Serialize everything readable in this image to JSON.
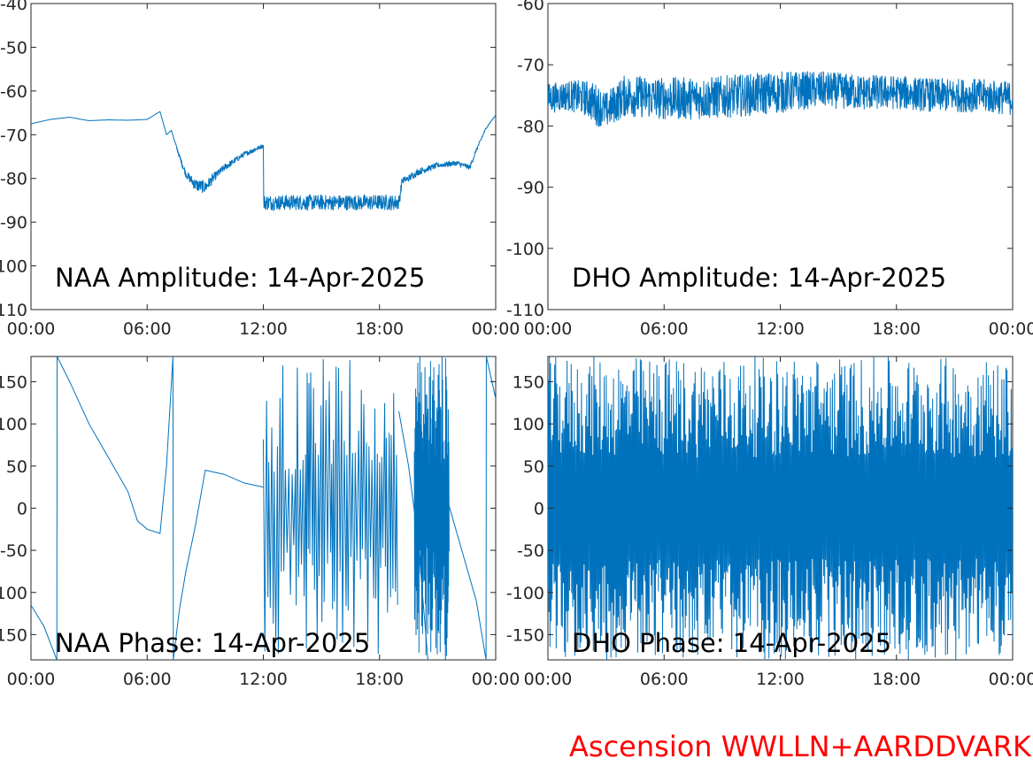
{
  "chart_data": [
    {
      "type": "line",
      "title": "NAA Amplitude: 14-Apr-2025",
      "xlabel": "",
      "ylabel": "",
      "xlim": [
        "00:00",
        "24:00"
      ],
      "ylim": [
        -110,
        -40
      ],
      "xticks": [
        "00:00",
        "06:00",
        "12:00",
        "18:00",
        "00:00"
      ],
      "yticks": [
        "-40",
        "-50",
        "-60",
        "-70",
        "-80",
        "-90",
        "-100",
        "-110"
      ],
      "grid": false,
      "series": [
        {
          "color": "#0072bd",
          "x": [
            "00:00",
            "01:00",
            "02:00",
            "03:00",
            "04:00",
            "05:00",
            "06:00",
            "06:40",
            "07:00",
            "07:15",
            "07:40",
            "08:00",
            "08:30",
            "09:00",
            "09:30",
            "10:00",
            "11:00",
            "12:00",
            "12:01",
            "13:00",
            "14:00",
            "15:00",
            "16:00",
            "17:00",
            "18:00",
            "19:00",
            "19:10",
            "19:30",
            "20:00",
            "21:00",
            "22:00",
            "22:40",
            "23:00",
            "23:30",
            "24:00"
          ],
          "y": [
            -67.5,
            -66.5,
            -66,
            -66.8,
            -66.6,
            -66.7,
            -66.5,
            -64.7,
            -70,
            -69,
            -75,
            -79,
            -81.5,
            -82,
            -79.5,
            -77.5,
            -74.5,
            -72.5,
            -85.5,
            -85.5,
            -85.5,
            -85.5,
            -85.5,
            -85.5,
            -85.5,
            -85.5,
            -80.5,
            -80,
            -78.5,
            -77,
            -76.5,
            -77.5,
            -73.5,
            -68.5,
            -65.5
          ],
          "noise": [
            0,
            0,
            0,
            0,
            0,
            0,
            0,
            0,
            0,
            0,
            0.5,
            0.8,
            1.5,
            1.5,
            1,
            0.8,
            0.6,
            0.5,
            1.8,
            1.8,
            1.8,
            1.8,
            1.8,
            1.8,
            1.8,
            1.8,
            0.8,
            0.8,
            0.8,
            0.6,
            0.6,
            0.6,
            0.4,
            0.2,
            0
          ]
        }
      ]
    },
    {
      "type": "line",
      "title": "DHO Amplitude: 14-Apr-2025",
      "xlabel": "",
      "ylabel": "",
      "xlim": [
        "00:00",
        "24:00"
      ],
      "ylim": [
        -110,
        -60
      ],
      "xticks": [
        "00:00",
        "06:00",
        "12:00",
        "18:00",
        "00:00"
      ],
      "yticks": [
        "-60",
        "-70",
        "-80",
        "-90",
        "-100",
        "-110"
      ],
      "grid": false,
      "series": [
        {
          "color": "#0072bd",
          "x": [
            "00:00",
            "01:00",
            "02:00",
            "02:30",
            "03:00",
            "04:00",
            "06:00",
            "08:00",
            "10:00",
            "12:00",
            "14:00",
            "16:00",
            "18:00",
            "20:00",
            "22:00",
            "24:00"
          ],
          "y": [
            -75.5,
            -75,
            -75.5,
            -76.5,
            -77.5,
            -75,
            -75.5,
            -75.5,
            -75,
            -74.5,
            -74,
            -74.5,
            -74.5,
            -75,
            -75,
            -75.5
          ],
          "noise": [
            2.5,
            2.5,
            3,
            3.5,
            3,
            3.5,
            3.5,
            3.5,
            3.5,
            3.5,
            3,
            3,
            2.8,
            2.8,
            2.8,
            2.8
          ]
        }
      ]
    },
    {
      "type": "line",
      "title": "NAA Phase: 14-Apr-2025",
      "xlabel": "",
      "ylabel": "",
      "xlim": [
        "00:00",
        "24:00"
      ],
      "ylim": [
        -180,
        180
      ],
      "xticks": [
        "00:00",
        "06:00",
        "12:00",
        "18:00",
        "00:00"
      ],
      "yticks": [
        "150",
        "100",
        "50",
        "0",
        "-50",
        "-100",
        "-150"
      ],
      "grid": false,
      "series": [
        {
          "color": "#0072bd",
          "x": [
            "00:00",
            "00:40",
            "01:20",
            "01:21",
            "02:00",
            "03:00",
            "04:00",
            "05:00",
            "05:30",
            "06:00",
            "06:40",
            "07:00",
            "07:20",
            "07:21",
            "07:40",
            "08:00",
            "08:30",
            "09:00",
            "10:00",
            "11:00",
            "12:00"
          ],
          "y": [
            -115,
            -140,
            -180,
            180,
            150,
            100,
            60,
            20,
            -15,
            -25,
            -30,
            50,
            180,
            -180,
            -120,
            -75,
            -20,
            45,
            40,
            30,
            25
          ]
        },
        {
          "color": "#0072bd",
          "x": [
            "19:00",
            "19:30",
            "20:00",
            "20:30"
          ],
          "y": [
            115,
            50,
            -40,
            -180
          ]
        },
        {
          "color": "#0072bd",
          "x": [
            "21:30",
            "22:00",
            "23:00",
            "23:30",
            "23:31",
            "24:00"
          ],
          "y": [
            10,
            -30,
            -110,
            -180,
            180,
            130
          ]
        }
      ]
    },
    {
      "type": "line",
      "title": "DHO Phase: 14-Apr-2025",
      "xlabel": "",
      "ylabel": "",
      "xlim": [
        "00:00",
        "24:00"
      ],
      "ylim": [
        -180,
        180
      ],
      "xticks": [
        "00:00",
        "06:00",
        "12:00",
        "18:00",
        "00:00"
      ],
      "yticks": [
        "150",
        "100",
        "50",
        "0",
        "-50",
        "-100",
        "-150"
      ],
      "grid": false,
      "series": [
        {
          "color": "#0072bd",
          "x": [
            "00:00",
            "24:00"
          ],
          "y": [
            0,
            0
          ]
        }
      ]
    }
  ],
  "credit": {
    "text": "Ascension WWLLN+AARDDVARK",
    "color": "#ff0000"
  }
}
